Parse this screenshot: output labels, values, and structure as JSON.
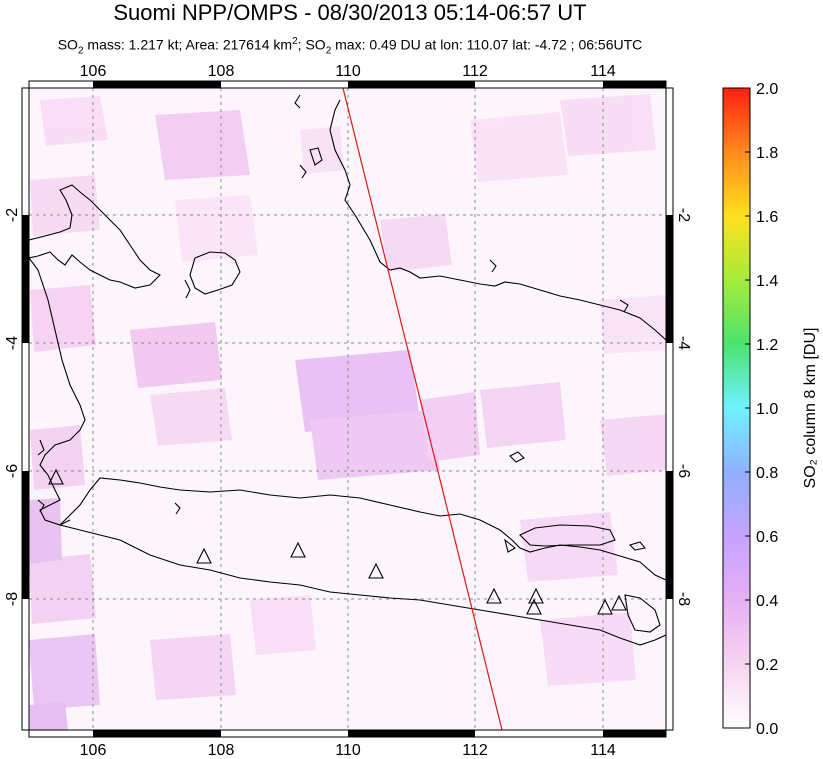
{
  "header": {
    "title": "Suomi NPP/OMPS - 08/30/2013 05:14-06:57 UT",
    "subtitle_mass": "1.217 kt",
    "subtitle_area": "217614 km",
    "subtitle_max": "0.49 DU at lon: 110.07 lat: -4.72 ; 06:56UTC"
  },
  "map": {
    "lon_ticks": [
      "106",
      "108",
      "110",
      "112",
      "114"
    ],
    "lat_ticks": [
      "-2",
      "-4",
      "-6",
      "-8"
    ],
    "volcano_marker": "triangle-icon"
  },
  "colorbar": {
    "label": "SO₂ column 8 km [DU]",
    "ticks": [
      "2.0",
      "1.8",
      "1.6",
      "1.4",
      "1.2",
      "1.0",
      "0.8",
      "0.6",
      "0.4",
      "0.2",
      "0.0"
    ],
    "colors": [
      "#ffffff",
      "#f7c7ef",
      "#c9a6ff",
      "#7fb0ff",
      "#6ff2ff",
      "#4be36f",
      "#c8f23a",
      "#ffd21e",
      "#ff8a1e",
      "#ff2a10"
    ]
  }
}
